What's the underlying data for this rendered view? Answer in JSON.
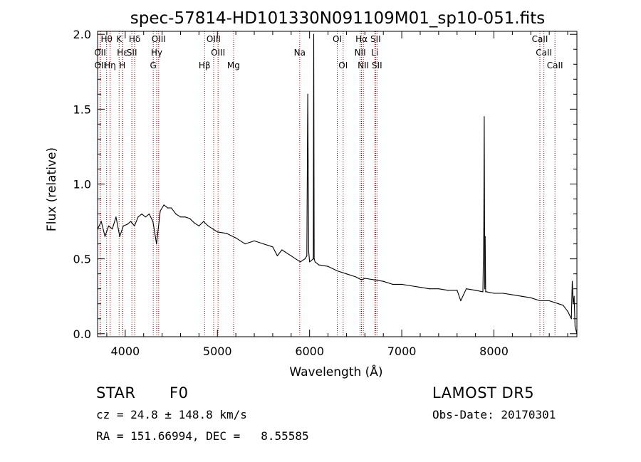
{
  "chart_data": {
    "type": "line",
    "title": "spec-57814-HD101330N091109M01_sp10-051.fits",
    "xlabel": "Wavelength (Å)",
    "ylabel": "Flux (relative)",
    "xlim": [
      3700,
      8900
    ],
    "ylim": [
      -0.02,
      2.02
    ],
    "xticks": [
      4000,
      5000,
      6000,
      7000,
      8000
    ],
    "yticks": [
      0.0,
      0.5,
      1.0,
      1.5,
      2.0
    ],
    "ytick_labels": [
      "0.0",
      "0.5",
      "1.0",
      "1.5",
      "2.0"
    ],
    "grid": false,
    "line_color": "#000000",
    "marker_line_color": "#a00000",
    "series": [
      {
        "x": [
          3700,
          3740,
          3780,
          3820,
          3860,
          3900,
          3940,
          3980,
          4020,
          4060,
          4100,
          4140,
          4180,
          4220,
          4260,
          4300,
          4340,
          4380,
          4420,
          4460,
          4500,
          4550,
          4600,
          4650,
          4700,
          4750,
          4800,
          4850,
          4900,
          4950,
          5000,
          5100,
          5200,
          5300,
          5400,
          5500,
          5600,
          5650,
          5700,
          5800,
          5900,
          5950,
          5970,
          5980,
          5990,
          6000,
          6040,
          6045,
          6050,
          6060,
          6100,
          6200,
          6300,
          6400,
          6500,
          6563,
          6600,
          6700,
          6800,
          6900,
          7000,
          7100,
          7200,
          7300,
          7400,
          7500,
          7600,
          7640,
          7700,
          7800,
          7880,
          7890,
          7895,
          7900,
          7905,
          7910,
          7920,
          8000,
          8100,
          8200,
          8300,
          8400,
          8500,
          8600,
          8700,
          8750,
          8800,
          8840,
          8850,
          8860,
          8870,
          8880,
          8900
        ],
        "y": [
          0.7,
          0.75,
          0.65,
          0.72,
          0.7,
          0.78,
          0.65,
          0.72,
          0.73,
          0.75,
          0.72,
          0.78,
          0.8,
          0.78,
          0.8,
          0.75,
          0.6,
          0.82,
          0.86,
          0.84,
          0.84,
          0.8,
          0.78,
          0.78,
          0.77,
          0.74,
          0.72,
          0.75,
          0.72,
          0.7,
          0.68,
          0.67,
          0.64,
          0.6,
          0.62,
          0.6,
          0.58,
          0.52,
          0.56,
          0.52,
          0.48,
          0.5,
          0.52,
          1.6,
          0.55,
          0.48,
          0.5,
          2.0,
          0.5,
          0.48,
          0.46,
          0.45,
          0.42,
          0.4,
          0.38,
          0.36,
          0.37,
          0.36,
          0.35,
          0.33,
          0.33,
          0.32,
          0.31,
          0.3,
          0.3,
          0.29,
          0.29,
          0.22,
          0.3,
          0.29,
          0.28,
          0.7,
          1.45,
          0.3,
          0.65,
          0.28,
          0.28,
          0.27,
          0.27,
          0.26,
          0.25,
          0.24,
          0.22,
          0.22,
          0.2,
          0.19,
          0.15,
          0.1,
          0.35,
          0.2,
          0.25,
          0.05,
          0.0
        ]
      }
    ],
    "line_markers": [
      {
        "label": "Hθ",
        "x": 3798,
        "row": 0
      },
      {
        "label": "OII",
        "x": 3727,
        "row": 1
      },
      {
        "label": "OII",
        "x": 3729,
        "row": 2
      },
      {
        "label": "K",
        "x": 3934,
        "row": 0
      },
      {
        "label": "Hε",
        "x": 3970,
        "row": 1
      },
      {
        "label": "Hη",
        "x": 3835,
        "row": 2
      },
      {
        "label": "H",
        "x": 3969,
        "row": 2
      },
      {
        "label": "Hδ",
        "x": 4102,
        "row": 0
      },
      {
        "label": "SII",
        "x": 4072,
        "row": 1
      },
      {
        "label": "OIII",
        "x": 4363,
        "row": 0
      },
      {
        "label": "Hγ",
        "x": 4341,
        "row": 1
      },
      {
        "label": "G",
        "x": 4304,
        "row": 2
      },
      {
        "label": "OIII",
        "x": 4959,
        "row": 0
      },
      {
        "label": "OIII",
        "x": 5007,
        "row": 1
      },
      {
        "label": "Hβ",
        "x": 4861,
        "row": 2
      },
      {
        "label": "Mg",
        "x": 5175,
        "row": 2
      },
      {
        "label": "Na",
        "x": 5893,
        "row": 1
      },
      {
        "label": "OI",
        "x": 6300,
        "row": 0
      },
      {
        "label": "OI",
        "x": 6364,
        "row": 2
      },
      {
        "label": "Hα",
        "x": 6563,
        "row": 0
      },
      {
        "label": "NII",
        "x": 6548,
        "row": 1
      },
      {
        "label": "NII",
        "x": 6583,
        "row": 2
      },
      {
        "label": "SII",
        "x": 6716,
        "row": 0
      },
      {
        "label": "Li",
        "x": 6708,
        "row": 1
      },
      {
        "label": "SII",
        "x": 6731,
        "row": 2
      },
      {
        "label": "CaII",
        "x": 8498,
        "row": 0
      },
      {
        "label": "CaII",
        "x": 8542,
        "row": 1
      },
      {
        "label": "CaII",
        "x": 8662,
        "row": 2
      }
    ]
  },
  "info": {
    "object_class": "STAR",
    "subclass": "F0",
    "survey": "LAMOST DR5",
    "redshift": "cz = 24.8 ± 148.8 km/s",
    "obs_date": "Obs-Date: 20170301",
    "coords": "RA = 151.66994, DEC =   8.55585"
  }
}
